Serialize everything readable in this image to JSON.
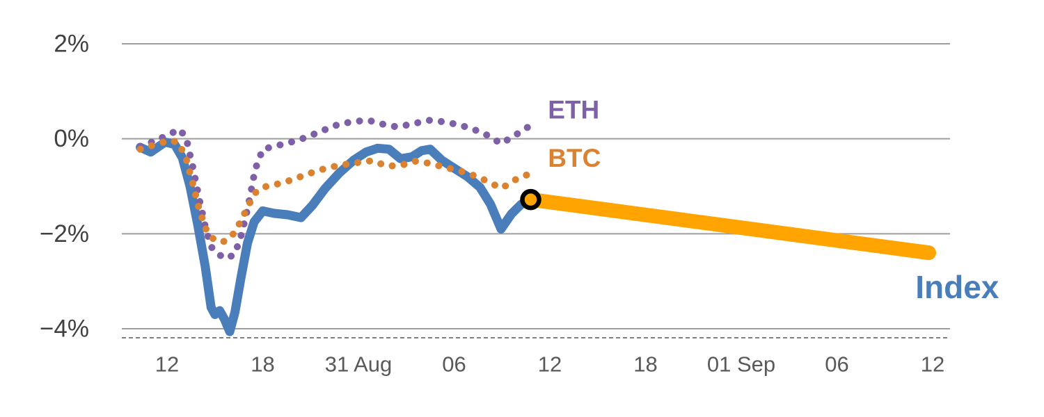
{
  "chart_data": {
    "type": "line",
    "title": "",
    "y_axis": {
      "range": [
        -4.6,
        2.6
      ],
      "gridlines": true,
      "ticks": [
        {
          "value": 2,
          "label": "2%"
        },
        {
          "value": 0,
          "label": "0%"
        },
        {
          "value": -2,
          "label": "−2%"
        },
        {
          "value": -4,
          "label": "−4%"
        }
      ]
    },
    "x_axis": {
      "tick_labels": [
        "12",
        "18",
        "31 Aug",
        "06",
        "12",
        "18",
        "01 Sep",
        "06",
        "12"
      ]
    },
    "colors": {
      "grid": "#9e9e9e",
      "axis_text": "#595959",
      "axis_line": "#808080",
      "index_blue": "#4A7EBB",
      "eth_purple": "#7D60A6",
      "btc_orange": "#DB8230",
      "forecast_orange": "#FFA400",
      "marker_black": "#000000"
    },
    "series": [
      {
        "name": "Index",
        "color": "#4A7EBB",
        "style": "solid",
        "label": {
          "text": "Index",
          "u": 7.82,
          "v": -3.12,
          "size": 46,
          "weight": "bold",
          "color": "#4A7EBB"
        },
        "points": [
          [
            -0.28,
            -0.18
          ],
          [
            -0.17,
            -0.28
          ],
          [
            -0.02,
            -0.07
          ],
          [
            0.08,
            -0.12
          ],
          [
            0.16,
            -0.4
          ],
          [
            0.24,
            -1.0
          ],
          [
            0.32,
            -1.8
          ],
          [
            0.4,
            -2.7
          ],
          [
            0.46,
            -3.55
          ],
          [
            0.5,
            -3.7
          ],
          [
            0.55,
            -3.62
          ],
          [
            0.6,
            -3.8
          ],
          [
            0.655,
            -4.06
          ],
          [
            0.71,
            -3.65
          ],
          [
            0.77,
            -2.95
          ],
          [
            0.84,
            -2.2
          ],
          [
            0.91,
            -1.75
          ],
          [
            1.0,
            -1.52
          ],
          [
            1.12,
            -1.57
          ],
          [
            1.26,
            -1.6
          ],
          [
            1.4,
            -1.66
          ],
          [
            1.52,
            -1.4
          ],
          [
            1.65,
            -1.05
          ],
          [
            1.8,
            -0.72
          ],
          [
            1.95,
            -0.45
          ],
          [
            2.08,
            -0.28
          ],
          [
            2.2,
            -0.2
          ],
          [
            2.32,
            -0.22
          ],
          [
            2.44,
            -0.42
          ],
          [
            2.56,
            -0.38
          ],
          [
            2.66,
            -0.25
          ],
          [
            2.75,
            -0.22
          ],
          [
            2.87,
            -0.45
          ],
          [
            3.0,
            -0.62
          ],
          [
            3.14,
            -0.8
          ],
          [
            3.27,
            -1.02
          ],
          [
            3.38,
            -1.38
          ],
          [
            3.49,
            -1.9
          ],
          [
            3.6,
            -1.58
          ],
          [
            3.7,
            -1.38
          ],
          [
            3.8,
            -1.28
          ]
        ]
      },
      {
        "name": "ETH",
        "color": "#7D60A6",
        "style": "dotted",
        "label": {
          "text": "ETH",
          "u": 3.98,
          "v": 0.61,
          "size": 37,
          "weight": "600",
          "color": "#7D60A6"
        },
        "points": [
          [
            -0.28,
            -0.16
          ],
          [
            -0.12,
            -0.04
          ],
          [
            0.03,
            0.1
          ],
          [
            0.13,
            0.2
          ],
          [
            0.2,
            0.02
          ],
          [
            0.27,
            -0.6
          ],
          [
            0.34,
            -1.3
          ],
          [
            0.41,
            -1.95
          ],
          [
            0.47,
            -2.3
          ],
          [
            0.55,
            -2.45
          ],
          [
            0.63,
            -2.52
          ],
          [
            0.71,
            -2.42
          ],
          [
            0.78,
            -2.0
          ],
          [
            0.85,
            -1.4
          ],
          [
            0.92,
            -0.65
          ],
          [
            1.0,
            -0.22
          ],
          [
            1.14,
            -0.15
          ],
          [
            1.28,
            -0.08
          ],
          [
            1.44,
            0.02
          ],
          [
            1.6,
            0.15
          ],
          [
            1.76,
            0.28
          ],
          [
            1.93,
            0.36
          ],
          [
            2.1,
            0.39
          ],
          [
            2.25,
            0.31
          ],
          [
            2.4,
            0.25
          ],
          [
            2.56,
            0.31
          ],
          [
            2.73,
            0.39
          ],
          [
            2.88,
            0.36
          ],
          [
            3.04,
            0.3
          ],
          [
            3.19,
            0.21
          ],
          [
            3.34,
            0.08
          ],
          [
            3.49,
            -0.1
          ],
          [
            3.62,
            0.05
          ],
          [
            3.73,
            0.2
          ],
          [
            3.83,
            0.31
          ]
        ]
      },
      {
        "name": "BTC",
        "color": "#DB8230",
        "style": "dotted",
        "label": {
          "text": "BTC",
          "u": 3.98,
          "v": -0.41,
          "size": 37,
          "weight": "600",
          "color": "#DB8230"
        },
        "points": [
          [
            -0.28,
            -0.22
          ],
          [
            -0.12,
            -0.12
          ],
          [
            0.03,
            -0.03
          ],
          [
            0.12,
            -0.08
          ],
          [
            0.2,
            -0.42
          ],
          [
            0.27,
            -0.95
          ],
          [
            0.34,
            -1.52
          ],
          [
            0.41,
            -1.92
          ],
          [
            0.48,
            -2.1
          ],
          [
            0.58,
            -2.18
          ],
          [
            0.68,
            -2.04
          ],
          [
            0.77,
            -1.74
          ],
          [
            0.85,
            -1.4
          ],
          [
            0.93,
            -1.12
          ],
          [
            1.0,
            -1.02
          ],
          [
            1.14,
            -0.96
          ],
          [
            1.28,
            -0.88
          ],
          [
            1.42,
            -0.78
          ],
          [
            1.56,
            -0.68
          ],
          [
            1.7,
            -0.6
          ],
          [
            1.86,
            -0.54
          ],
          [
            2.0,
            -0.5
          ],
          [
            2.15,
            -0.46
          ],
          [
            2.3,
            -0.58
          ],
          [
            2.46,
            -0.55
          ],
          [
            2.6,
            -0.47
          ],
          [
            2.75,
            -0.52
          ],
          [
            2.9,
            -0.6
          ],
          [
            3.05,
            -0.67
          ],
          [
            3.19,
            -0.76
          ],
          [
            3.32,
            -0.87
          ],
          [
            3.43,
            -0.98
          ],
          [
            3.5,
            -1.04
          ],
          [
            3.62,
            -0.88
          ],
          [
            3.73,
            -0.78
          ],
          [
            3.82,
            -0.72
          ]
        ]
      },
      {
        "name": "Index forecast",
        "color": "#FFA400",
        "style": "solid-thick",
        "points": [
          [
            3.8,
            -1.28
          ],
          [
            7.96,
            -2.4
          ]
        ]
      }
    ],
    "marker": {
      "u": 3.8,
      "v": -1.28,
      "type": "open-circle",
      "color": "#000000"
    }
  }
}
